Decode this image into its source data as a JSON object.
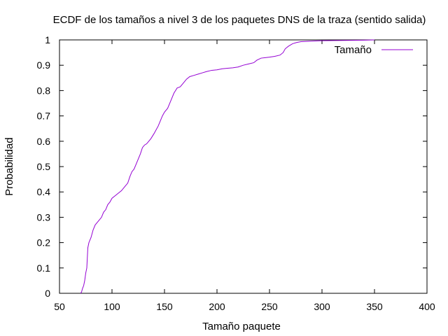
{
  "chart_data": {
    "type": "line",
    "title": "ECDF de los tamaños a nivel 3 de los paquetes DNS de la traza (sentido salida)",
    "xlabel": "Tamaño paquete",
    "ylabel": "Probabilidad",
    "xlim": [
      50,
      400
    ],
    "ylim": [
      0,
      1
    ],
    "xticks": [
      50,
      100,
      150,
      200,
      250,
      300,
      350,
      400
    ],
    "yticks": [
      0,
      0.1,
      0.2,
      0.3,
      0.4,
      0.5,
      0.6,
      0.7,
      0.8,
      0.9,
      1
    ],
    "grid": false,
    "legend_position": "top-right",
    "series": [
      {
        "name": "Tamaño",
        "color": "#9400d3",
        "points": [
          [
            70,
            0
          ],
          [
            71,
            0.005
          ],
          [
            72,
            0.02
          ],
          [
            73,
            0.03
          ],
          [
            74,
            0.05
          ],
          [
            75,
            0.08
          ],
          [
            76,
            0.1
          ],
          [
            77,
            0.18
          ],
          [
            78,
            0.2
          ],
          [
            80,
            0.22
          ],
          [
            82,
            0.25
          ],
          [
            84,
            0.27
          ],
          [
            86,
            0.28
          ],
          [
            88,
            0.29
          ],
          [
            90,
            0.3
          ],
          [
            92,
            0.32
          ],
          [
            94,
            0.33
          ],
          [
            96,
            0.35
          ],
          [
            98,
            0.36
          ],
          [
            100,
            0.375
          ],
          [
            103,
            0.385
          ],
          [
            106,
            0.395
          ],
          [
            109,
            0.405
          ],
          [
            112,
            0.42
          ],
          [
            115,
            0.435
          ],
          [
            117,
            0.46
          ],
          [
            119,
            0.48
          ],
          [
            121,
            0.49
          ],
          [
            123,
            0.51
          ],
          [
            125,
            0.53
          ],
          [
            127,
            0.55
          ],
          [
            129,
            0.575
          ],
          [
            131,
            0.585
          ],
          [
            133,
            0.59
          ],
          [
            135,
            0.6
          ],
          [
            137,
            0.61
          ],
          [
            140,
            0.63
          ],
          [
            142,
            0.645
          ],
          [
            144,
            0.66
          ],
          [
            146,
            0.68
          ],
          [
            148,
            0.7
          ],
          [
            150,
            0.715
          ],
          [
            153,
            0.73
          ],
          [
            156,
            0.76
          ],
          [
            159,
            0.79
          ],
          [
            162,
            0.81
          ],
          [
            165,
            0.815
          ],
          [
            168,
            0.83
          ],
          [
            171,
            0.845
          ],
          [
            174,
            0.855
          ],
          [
            178,
            0.86
          ],
          [
            182,
            0.865
          ],
          [
            186,
            0.87
          ],
          [
            190,
            0.875
          ],
          [
            195,
            0.88
          ],
          [
            200,
            0.882
          ],
          [
            205,
            0.886
          ],
          [
            210,
            0.888
          ],
          [
            215,
            0.89
          ],
          [
            220,
            0.893
          ],
          [
            225,
            0.9
          ],
          [
            230,
            0.905
          ],
          [
            235,
            0.91
          ],
          [
            238,
            0.92
          ],
          [
            242,
            0.928
          ],
          [
            246,
            0.93
          ],
          [
            250,
            0.932
          ],
          [
            255,
            0.935
          ],
          [
            260,
            0.94
          ],
          [
            263,
            0.95
          ],
          [
            265,
            0.965
          ],
          [
            268,
            0.975
          ],
          [
            272,
            0.985
          ],
          [
            276,
            0.99
          ],
          [
            280,
            0.993
          ],
          [
            290,
            0.995
          ],
          [
            300,
            0.997
          ],
          [
            320,
            0.998
          ],
          [
            340,
            0.999
          ],
          [
            350,
            1.0
          ]
        ]
      }
    ]
  }
}
